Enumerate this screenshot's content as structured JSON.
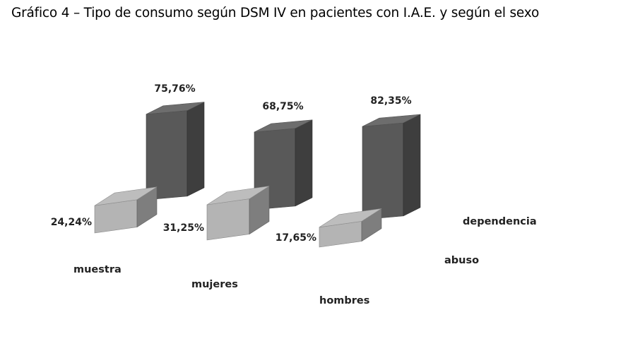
{
  "title": "Gráfico 4 – Tipo de consumo según DSM IV en pacientes con I.A.E. y según el sexo",
  "chart_data": {
    "type": "bar",
    "style": "3d-columns",
    "title": "Gráfico 4 – Tipo de consumo según DSM IV en pacientes con I.A.E. y según el sexo",
    "categories": [
      "muestra",
      "mujeres",
      "hombres"
    ],
    "series": [
      {
        "name": "abuso",
        "values": [
          24.24,
          31.25,
          17.65
        ],
        "labels": [
          "24,24%",
          "31,25%",
          "17,65%"
        ],
        "color": "#b4b4b4"
      },
      {
        "name": "dependencia",
        "values": [
          75.76,
          68.75,
          82.35
        ],
        "labels": [
          "75,76%",
          "68,75%",
          "82,35%"
        ],
        "color": "#595959"
      }
    ],
    "unit": "%",
    "grid": false,
    "axes_visible": false
  }
}
